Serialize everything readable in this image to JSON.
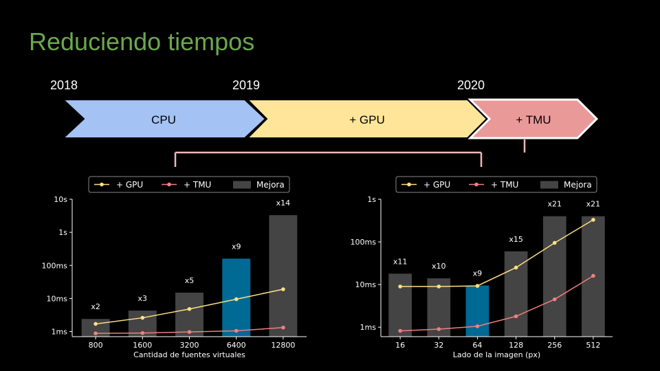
{
  "slide": {
    "title": "Reduciendo tiempos",
    "years": [
      "2018",
      "2019",
      "2020"
    ],
    "phases": [
      {
        "label": "CPU",
        "color": "#a4c2f4"
      },
      {
        "label": "+ GPU",
        "color": "#ffe599"
      },
      {
        "label": "+ TMU",
        "color": "#ea9999"
      }
    ]
  },
  "legend": {
    "gpu": "+ GPU",
    "tmu": "+ TMU",
    "improvement": "Mejora"
  },
  "colors": {
    "gpu": "#ffe082",
    "tmu": "#f08080",
    "bar": "#444444",
    "bar_highlight": "#006994",
    "connector": "#f4b6b6"
  },
  "chart_data": [
    {
      "type": "bar",
      "xlabel": "Cantidad de fuentes virtuales",
      "categories": [
        "800",
        "1600",
        "3200",
        "6400",
        "12800"
      ],
      "yscale": "log",
      "ylim": [
        0.0007,
        10
      ],
      "yticks": [
        {
          "v": 10,
          "label": "10s"
        },
        {
          "v": 1,
          "label": "1s"
        },
        {
          "v": 0.1,
          "label": "100ms"
        },
        {
          "v": 0.01,
          "label": "10ms"
        },
        {
          "v": 0.001,
          "label": "1ms"
        }
      ],
      "bar_values": [
        0.0024,
        0.0043,
        0.015,
        0.16,
        3.3
      ],
      "bar_labels": [
        "x2",
        "x3",
        "x5",
        "x9",
        "x14"
      ],
      "highlight_index": 3,
      "series": [
        {
          "name": "+ GPU",
          "values": [
            0.0017,
            0.0026,
            0.0048,
            0.0095,
            0.019
          ]
        },
        {
          "name": "+ TMU",
          "values": [
            0.00088,
            0.0009,
            0.00097,
            0.00105,
            0.00132
          ]
        }
      ],
      "legend_position": "top"
    },
    {
      "type": "bar",
      "xlabel": "Lado de la imagen (px)",
      "categories": [
        "16",
        "32",
        "64",
        "128",
        "256",
        "512"
      ],
      "yscale": "log",
      "ylim": [
        0.0006,
        1
      ],
      "yticks": [
        {
          "v": 1,
          "label": "1s"
        },
        {
          "v": 0.1,
          "label": "100ms"
        },
        {
          "v": 0.01,
          "label": "10ms"
        },
        {
          "v": 0.001,
          "label": "1ms"
        }
      ],
      "bar_values": [
        0.018,
        0.014,
        0.0095,
        0.06,
        0.4,
        0.4
      ],
      "bar_labels": [
        "x11",
        "x10",
        "x9",
        "x15",
        "x21",
        "x21"
      ],
      "highlight_index": 2,
      "series": [
        {
          "name": "+ GPU",
          "values": [
            0.009,
            0.009,
            0.0093,
            0.025,
            0.095,
            0.33
          ]
        },
        {
          "name": "+ TMU",
          "values": [
            0.00082,
            0.0009,
            0.00105,
            0.0018,
            0.0045,
            0.016
          ]
        }
      ],
      "legend_position": "top"
    }
  ]
}
